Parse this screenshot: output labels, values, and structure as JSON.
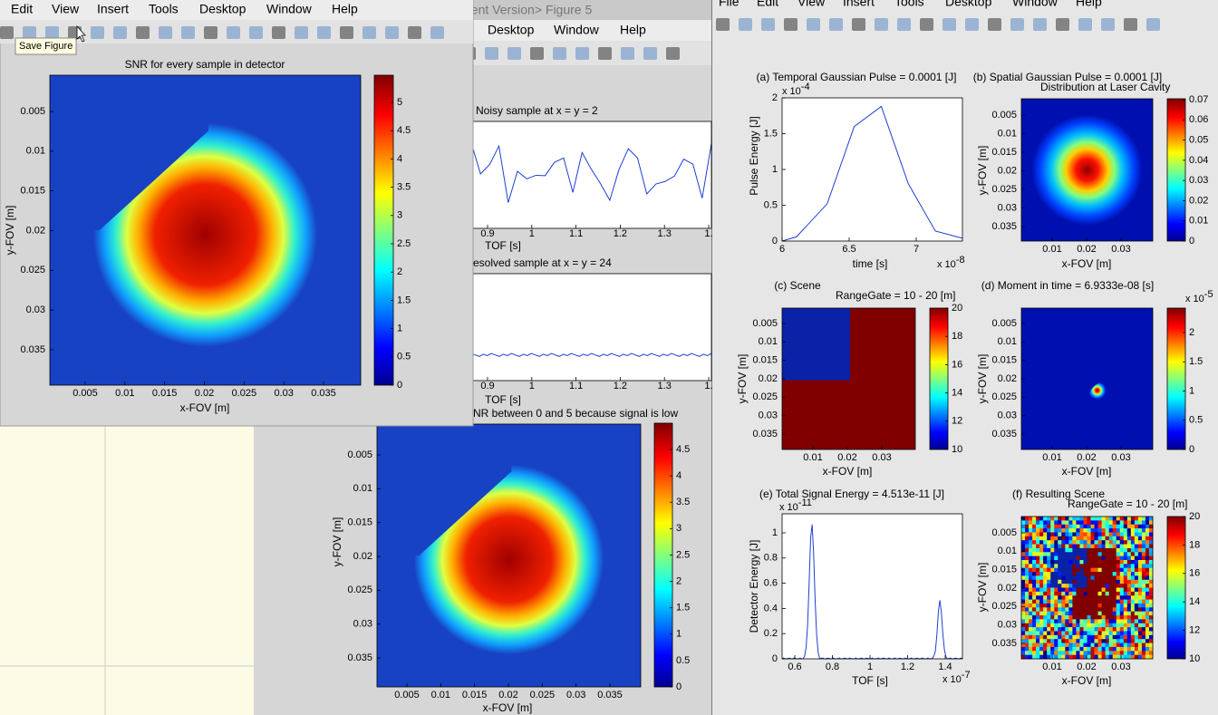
{
  "windows": [
    {
      "menu": [
        "Edit",
        "View",
        "Insert",
        "Tools",
        "Desktop",
        "Window",
        "Help"
      ],
      "tooltip": "Save Figure",
      "plots": [
        {
          "title": "SNR for every sample in detector",
          "xlabel": "x-FOV [m]",
          "ylabel": "y-FOV [m]",
          "xticks": [
            "0.005",
            "0.01",
            "0.015",
            "0.02",
            "0.025",
            "0.03",
            "0.035"
          ],
          "yticks": [
            "0.005",
            "0.01",
            "0.015",
            "0.02",
            "0.025",
            "0.03",
            "0.035"
          ],
          "colorbar": [
            "0",
            "0.5",
            "1",
            "1.5",
            "2",
            "2.5",
            "3",
            "3.5",
            "4",
            "4.5",
            "5"
          ]
        }
      ]
    },
    {
      "title": "dent Version> Figure 5",
      "menu": [
        "Desktop",
        "Window",
        "Help"
      ],
      "plots": [
        {
          "title": "Noisy sample at   x = y = 2",
          "xlabel": "TOF [s]",
          "xticks": [
            "0.9",
            "1",
            "1.1",
            "1.2",
            "1.3",
            "1."
          ]
        },
        {
          "title": "esolved sample at   x = y = 24",
          "xlabel": "TOF [s]",
          "xticks": [
            "0.9",
            "1",
            "1.1",
            "1.2",
            "1.3",
            "1."
          ]
        },
        {
          "title": "NR between 0 and 5 because signal is low",
          "xlabel": "x-FOV [m]",
          "ylabel": "y-FOV [m]",
          "xticks": [
            "0.005",
            "0.01",
            "0.015",
            "0.02",
            "0.025",
            "0.03",
            "0.035"
          ],
          "yticks": [
            "0.005",
            "0.01",
            "0.015",
            "0.02",
            "0.025",
            "0.03",
            "0.035"
          ],
          "colorbar": [
            "0",
            "0.5",
            "1",
            "1.5",
            "2",
            "2.5",
            "3",
            "3.5",
            "4",
            "4.5"
          ]
        }
      ]
    },
    {
      "menu": [
        "File",
        "Edit",
        "View",
        "Insert",
        "Tools",
        "Desktop",
        "Window",
        "Help"
      ],
      "plots": [
        {
          "title": "(a) Temporal Gaussian Pulse = 0.0001 [J]",
          "xlabel": "time [s]",
          "ylabel": "Pulse Energy [J]",
          "xticks": [
            "6",
            "6.5",
            "7"
          ],
          "yticks": [
            "0",
            "0.5",
            "1",
            "1.5",
            "2"
          ],
          "yexponent": {
            "base": "x 10",
            "power": "-4"
          },
          "xexponent": {
            "base": "x 10",
            "power": "-8"
          }
        },
        {
          "title": "(b) Spatial Gaussian Pulse = 0.0001 [J]",
          "subtitle": "Distribution at Laser Cavity",
          "xlabel": "x-FOV [m]",
          "ylabel": "y-FOV [m]",
          "xticks": [
            "0.01",
            "0.02",
            "0.03"
          ],
          "yticks": [
            "0.005",
            "0.01",
            "0.015",
            "0.02",
            "0.025",
            "0.03",
            "0.035"
          ],
          "colorbar": [
            "0",
            "0.01",
            "0.02",
            "0.03",
            "0.04",
            "0.05",
            "0.06",
            "0.07"
          ]
        },
        {
          "title": "(c) Scene",
          "subtitle": "RangeGate = 10 - 20 [m]",
          "xlabel": "x-FOV [m]",
          "ylabel": "y-FOV [m]",
          "xticks": [
            "0.01",
            "0.02",
            "0.03"
          ],
          "yticks": [
            "0.005",
            "0.01",
            "0.015",
            "0.02",
            "0.025",
            "0.03",
            "0.035"
          ],
          "colorbar": [
            "10",
            "12",
            "14",
            "16",
            "18",
            "20"
          ]
        },
        {
          "title": "(d) Moment in time = 6.9333e-08 [s]",
          "xlabel": "x-FOV [m]",
          "ylabel": "y-FOV [m]",
          "xticks": [
            "0.01",
            "0.02",
            "0.03"
          ],
          "yticks": [
            "0.005",
            "0.01",
            "0.015",
            "0.02",
            "0.025",
            "0.03",
            "0.035"
          ],
          "colorbar": [
            "0",
            "0.5",
            "1",
            "1.5",
            "2"
          ],
          "cbexponent": {
            "base": "x 10",
            "power": "-5"
          }
        },
        {
          "title": "(e) Total Signal Energy = 4.513e-11 [J]",
          "xlabel": "TOF [s]",
          "ylabel": "Detector Energy [J]",
          "xticks": [
            "0.6",
            "0.8",
            "1",
            "1.2",
            "1.4"
          ],
          "yticks": [
            "0",
            "0.2",
            "0.4",
            "0.6",
            "0.8",
            "1"
          ],
          "yexponent": {
            "base": "x 10",
            "power": "-11"
          },
          "xexponent": {
            "base": "x 10",
            "power": "-7"
          }
        },
        {
          "title": "(f) Resulting Scene",
          "subtitle": "RangeGate = 10 - 20 [m]",
          "xlabel": "x-FOV [m]",
          "ylabel": "y-FOV [m]",
          "xticks": [
            "0.01",
            "0.02",
            "0.03"
          ],
          "yticks": [
            "0.005",
            "0.01",
            "0.015",
            "0.02",
            "0.025",
            "0.03",
            "0.035"
          ],
          "colorbar": [
            "10",
            "12",
            "14",
            "16",
            "18",
            "20"
          ]
        }
      ]
    }
  ]
}
